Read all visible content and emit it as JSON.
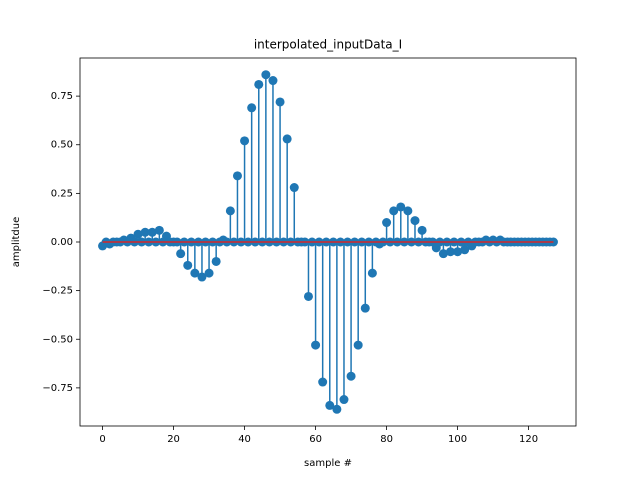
{
  "chart_data": {
    "type": "stem",
    "title": "interpolated_inputData_I",
    "xlabel": "sample #",
    "ylabel": "amplitdue",
    "x": [
      0,
      1,
      2,
      3,
      4,
      5,
      6,
      7,
      8,
      9,
      10,
      11,
      12,
      13,
      14,
      15,
      16,
      17,
      18,
      19,
      20,
      21,
      22,
      23,
      24,
      25,
      26,
      27,
      28,
      29,
      30,
      31,
      32,
      33,
      34,
      35,
      36,
      37,
      38,
      39,
      40,
      41,
      42,
      43,
      44,
      45,
      46,
      47,
      48,
      49,
      50,
      51,
      52,
      53,
      54,
      55,
      56,
      57,
      58,
      59,
      60,
      61,
      62,
      63,
      64,
      65,
      66,
      67,
      68,
      69,
      70,
      71,
      72,
      73,
      74,
      75,
      76,
      77,
      78,
      79,
      80,
      81,
      82,
      83,
      84,
      85,
      86,
      87,
      88,
      89,
      90,
      91,
      92,
      93,
      94,
      95,
      96,
      97,
      98,
      99,
      100,
      101,
      102,
      103,
      104,
      105,
      106,
      107,
      108,
      109,
      110,
      111,
      112,
      113,
      114,
      115,
      116,
      117,
      118,
      119,
      120,
      121,
      122,
      123,
      124,
      125,
      126,
      127
    ],
    "values": [
      -0.02,
      0,
      -0.01,
      0,
      0,
      0,
      0.01,
      0,
      0.02,
      0,
      0.04,
      0,
      0.05,
      0,
      0.05,
      0,
      0.06,
      0,
      0.03,
      0,
      0,
      0,
      -0.06,
      0,
      -0.12,
      0,
      -0.16,
      0,
      -0.18,
      0,
      -0.16,
      0,
      -0.1,
      0,
      0.01,
      0,
      0.16,
      0,
      0.34,
      0,
      0.52,
      0,
      0.69,
      0,
      0.81,
      0,
      0.86,
      0,
      0.83,
      0,
      0.72,
      0,
      0.53,
      0,
      0.28,
      0,
      0,
      0,
      -0.28,
      0,
      -0.53,
      0,
      -0.72,
      0,
      -0.84,
      0,
      -0.86,
      0,
      -0.81,
      0,
      -0.69,
      0,
      -0.53,
      0,
      -0.34,
      0,
      -0.16,
      0,
      -0.01,
      0,
      0.1,
      0,
      0.16,
      0,
      0.18,
      0,
      0.16,
      0,
      0.11,
      0,
      0.06,
      0,
      0,
      0,
      -0.03,
      0,
      -0.06,
      0,
      -0.05,
      0,
      -0.05,
      0,
      -0.04,
      0,
      -0.02,
      0,
      0,
      0,
      0.01,
      0,
      0.01,
      0,
      0.01,
      0,
      0,
      0,
      0,
      0,
      0,
      0,
      0,
      0,
      0,
      0,
      0,
      0,
      0,
      0
    ],
    "color": "#1f77b4",
    "baseline_color": "#d62728",
    "xlim": [
      -6.35,
      133.35
    ],
    "ylim": [
      -0.946,
      0.946
    ],
    "xticks": [
      0,
      20,
      40,
      60,
      80,
      100,
      120
    ],
    "yticks": [
      {
        "value": -0.75,
        "label": "−0.75"
      },
      {
        "value": -0.5,
        "label": "−0.50"
      },
      {
        "value": -0.25,
        "label": "−0.25"
      },
      {
        "value": 0,
        "label": "0.00"
      },
      {
        "value": 0.25,
        "label": "0.25"
      },
      {
        "value": 0.5,
        "label": "0.50"
      },
      {
        "value": 0.75,
        "label": "0.75"
      }
    ]
  }
}
